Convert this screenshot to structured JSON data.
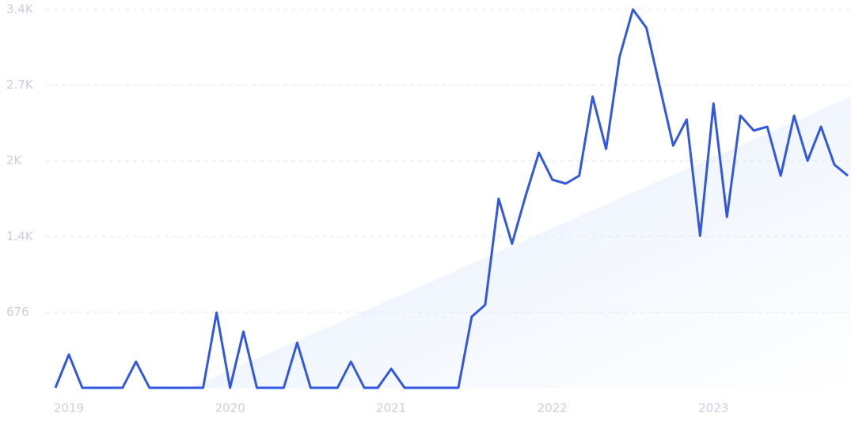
{
  "chart_data": {
    "type": "line",
    "categories": [
      null,
      "2019",
      null,
      null,
      null,
      null,
      null,
      null,
      null,
      null,
      null,
      null,
      null,
      "2020",
      null,
      null,
      null,
      null,
      null,
      null,
      null,
      null,
      null,
      null,
      null,
      "2021",
      null,
      null,
      null,
      null,
      null,
      null,
      null,
      null,
      null,
      null,
      null,
      "2022",
      null,
      null,
      null,
      null,
      null,
      null,
      null,
      null,
      null,
      null,
      null,
      "2023",
      null,
      null,
      null,
      null,
      null,
      null,
      null,
      null,
      null,
      null
    ],
    "series": [
      {
        "color": "#3358e0",
        "values": [
          0,
          297,
          0,
          0,
          0,
          0,
          233,
          0,
          0,
          0,
          0,
          0,
          672,
          0,
          502,
          0,
          0,
          0,
          403,
          0,
          0,
          0,
          233,
          0,
          0,
          170,
          0,
          0,
          0,
          0,
          0,
          636,
          742,
          1690,
          1287,
          1711,
          2100,
          1860,
          1824,
          1895,
          2602,
          2135,
          2956,
          3380,
          3217,
          2687,
          2164,
          2397,
          1358,
          2539,
          1527,
          2432,
          2298,
          2333,
          1895,
          2432,
          2029,
          2333,
          1994,
          1895
        ]
      }
    ],
    "ylim": [
      0,
      3380
    ],
    "yticks": [
      676,
      {
        "value": 1352,
        "label": "1.4K"
      },
      {
        "value": 2028,
        "label": "2K"
      },
      {
        "value": 2704,
        "label": "2.7K"
      },
      {
        "value": 3380,
        "label": "3.4K"
      }
    ],
    "grid": true
  }
}
